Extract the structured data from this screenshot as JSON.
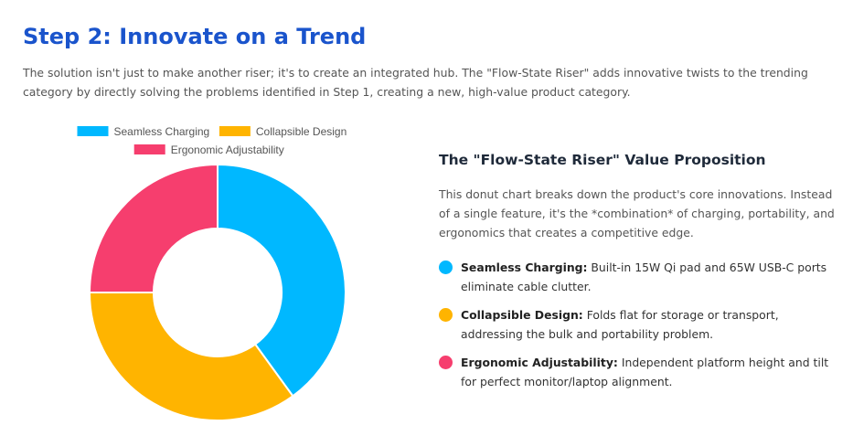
{
  "header": {
    "title": "Step 2: Innovate on a Trend",
    "intro": "The solution isn't just to make another riser; it's to create an integrated hub. The \"Flow-State Riser\" adds innovative twists to the trending category by directly solving the problems identified in Step 1, creating a new, high-value product category."
  },
  "value_prop": {
    "heading": "The \"Flow-State Riser\" Value Proposition",
    "description": "This donut chart breaks down the product's core innovations. Instead of a single feature, it's the *combination* of charging, portability, and ergonomics that creates a competitive edge.",
    "features": [
      {
        "name": "Seamless Charging:",
        "text": " Built-in 15W Qi pad and 65W USB-C ports eliminate cable clutter.",
        "color": "#00b8ff"
      },
      {
        "name": "Collapsible Design:",
        "text": " Folds flat for storage or transport, addressing the bulk and portability problem.",
        "color": "#ffb400"
      },
      {
        "name": "Ergonomic Adjustability:",
        "text": " Independent platform height and tilt for perfect monitor/laptop alignment.",
        "color": "#f63e6e"
      }
    ]
  },
  "chart_data": {
    "type": "pie",
    "variant": "donut",
    "legend_position": "top",
    "categories": [
      "Seamless Charging",
      "Collapsible Design",
      "Ergonomic Adjustability"
    ],
    "values": [
      40,
      35,
      25
    ],
    "colors": [
      "#00b8ff",
      "#ffb400",
      "#f63e6e"
    ]
  }
}
